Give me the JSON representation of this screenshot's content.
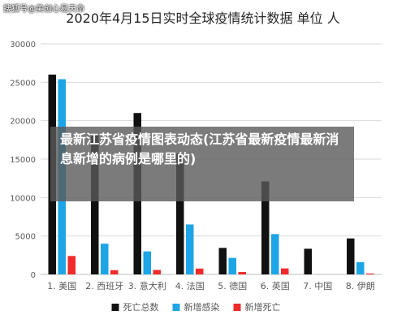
{
  "watermark": "搜狐号@美创心易天命",
  "overlay": {
    "headline": "最新江苏省疫情图表动态(江苏省最新疫情最新消息新增的病例是哪里的)"
  },
  "colors": {
    "background": "#ffffff",
    "grid": "#d9d9d9",
    "axis": "#bfbfbf",
    "tick_text": "#595959",
    "title_text": "#262626"
  },
  "chart_data": {
    "type": "bar",
    "title": "2020年4月15日实时全球疫情统计数据 单位 人",
    "xlabel": "",
    "ylabel": "",
    "ylim": [
      0,
      30000
    ],
    "yticks": [
      0,
      5000,
      10000,
      15000,
      20000,
      25000,
      30000
    ],
    "grid": true,
    "legend_position": "bottom",
    "categories": [
      "1. 美国",
      "2. 西班牙",
      "3. 意大利",
      "4. 法国",
      "5. 德国",
      "6. 英国",
      "7. 中国",
      "8. 伊朗"
    ],
    "series": [
      {
        "name": "死亡总数",
        "color": "#111111",
        "values": [
          26000,
          18300,
          21000,
          15700,
          3450,
          12100,
          3340,
          4680
        ]
      },
      {
        "name": "新增感染",
        "color": "#1ea5e6",
        "values": [
          25400,
          4000,
          3000,
          6500,
          2150,
          5250,
          0,
          1600
        ]
      },
      {
        "name": "新增死亡",
        "color": "#ef2b2b",
        "values": [
          2400,
          550,
          580,
          760,
          310,
          780,
          0,
          120
        ]
      }
    ]
  }
}
